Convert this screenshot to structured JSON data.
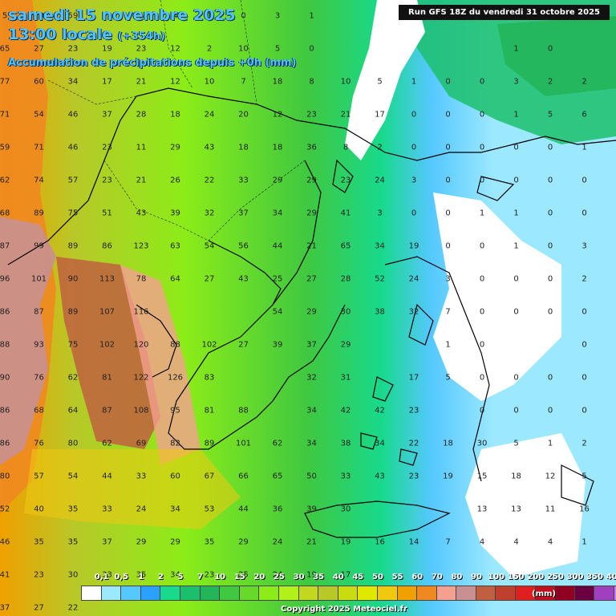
{
  "header": {
    "date_line": "samedi 15 novembre 2025",
    "time_line": "13:00 locale",
    "offset": "(+354h)",
    "variable": "Accumulation de précipitations depuis +0h (mm)"
  },
  "run_info": "Run GFS 18Z du vendredi 31 octobre 2025",
  "legend": {
    "labels": [
      "0,1",
      "0,5",
      "1",
      "2",
      "5",
      "7",
      "10",
      "15",
      "20",
      "25",
      "30",
      "35",
      "40",
      "45",
      "50",
      "55",
      "60",
      "70",
      "80",
      "90",
      "100",
      "150",
      "200",
      "250",
      "300",
      "350",
      "400",
      "500"
    ],
    "unit": "(mm)",
    "colors": [
      "#ffffff",
      "#9be8ff",
      "#55c8ff",
      "#2aa0ff",
      "#18d98c",
      "#1cc06c",
      "#24b55a",
      "#3fc840",
      "#66d92a",
      "#8cec18",
      "#b2f01a",
      "#c2d820",
      "#b8c828",
      "#c8dc10",
      "#e0e800",
      "#f0c810",
      "#f0a000",
      "#f08820",
      "#f4a090",
      "#c89090",
      "#c06040",
      "#c04030",
      "#e02020",
      "#c01020",
      "#900020",
      "#6a0040",
      "#a040c0",
      "#c080f0"
    ]
  },
  "copyright": "Copyright 2025 Meteociel.fr",
  "grid_values": [
    [
      "5",
      "29",
      "59",
      "52",
      "6",
      "4",
      "1",
      "0",
      "3",
      "1",
      "",
      "",
      "",
      "",
      "",
      "",
      "",
      ""
    ],
    [
      "65",
      "27",
      "23",
      "19",
      "23",
      "12",
      "2",
      "10",
      "5",
      "0",
      "",
      "",
      "",
      "",
      "",
      "1",
      "0",
      ""
    ],
    [
      "77",
      "60",
      "34",
      "17",
      "21",
      "12",
      "10",
      "7",
      "18",
      "8",
      "10",
      "5",
      "1",
      "0",
      "0",
      "3",
      "2",
      "2"
    ],
    [
      "71",
      "54",
      "46",
      "37",
      "28",
      "18",
      "24",
      "20",
      "12",
      "23",
      "21",
      "17",
      "0",
      "0",
      "0",
      "1",
      "5",
      "6"
    ],
    [
      "59",
      "71",
      "46",
      "23",
      "11",
      "29",
      "43",
      "18",
      "18",
      "36",
      "8",
      "2",
      "0",
      "0",
      "0",
      "0",
      "0",
      "1"
    ],
    [
      "62",
      "74",
      "57",
      "23",
      "21",
      "26",
      "22",
      "33",
      "29",
      "29",
      "23",
      "24",
      "3",
      "0",
      "0",
      "0",
      "0",
      "0"
    ],
    [
      "68",
      "89",
      "75",
      "51",
      "43",
      "39",
      "32",
      "37",
      "34",
      "29",
      "41",
      "3",
      "0",
      "0",
      "1",
      "1",
      "0",
      "0"
    ],
    [
      "87",
      "99",
      "89",
      "86",
      "123",
      "63",
      "54",
      "56",
      "44",
      "21",
      "65",
      "34",
      "19",
      "0",
      "0",
      "1",
      "0",
      "3"
    ],
    [
      "96",
      "101",
      "90",
      "113",
      "78",
      "64",
      "27",
      "43",
      "25",
      "27",
      "28",
      "52",
      "24",
      "3",
      "0",
      "0",
      "0",
      "2"
    ],
    [
      "86",
      "87",
      "89",
      "107",
      "116",
      "",
      "",
      "",
      "54",
      "29",
      "30",
      "38",
      "32",
      "7",
      "0",
      "0",
      "0",
      "0"
    ],
    [
      "88",
      "93",
      "75",
      "102",
      "120",
      "88",
      "102",
      "27",
      "39",
      "37",
      "29",
      "",
      "",
      "1",
      "0",
      "",
      "",
      "0"
    ],
    [
      "90",
      "76",
      "62",
      "81",
      "122",
      "126",
      "83",
      "",
      "",
      "32",
      "31",
      "",
      "17",
      "5",
      "0",
      "0",
      "0",
      "0"
    ],
    [
      "86",
      "68",
      "64",
      "87",
      "108",
      "95",
      "81",
      "88",
      "",
      "34",
      "42",
      "42",
      "23",
      "",
      "0",
      "0",
      "0",
      "0"
    ],
    [
      "86",
      "76",
      "80",
      "62",
      "69",
      "82",
      "89",
      "101",
      "62",
      "34",
      "38",
      "34",
      "22",
      "18",
      "30",
      "5",
      "1",
      "2"
    ],
    [
      "80",
      "57",
      "54",
      "44",
      "33",
      "60",
      "67",
      "66",
      "65",
      "50",
      "33",
      "43",
      "23",
      "19",
      "15",
      "18",
      "12",
      "5"
    ],
    [
      "52",
      "40",
      "35",
      "33",
      "24",
      "34",
      "53",
      "44",
      "36",
      "39",
      "30",
      "",
      "",
      "",
      "13",
      "13",
      "11",
      "16"
    ],
    [
      "46",
      "35",
      "35",
      "37",
      "29",
      "29",
      "35",
      "29",
      "24",
      "21",
      "19",
      "16",
      "14",
      "7",
      "4",
      "4",
      "4",
      "1"
    ],
    [
      "41",
      "23",
      "30",
      "33",
      "35",
      "34",
      "23",
      "25",
      "24",
      "19",
      "17",
      "",
      "",
      "",
      "",
      "",
      "",
      ""
    ],
    [
      "37",
      "27",
      "22",
      "",
      "",
      "",
      "",
      "",
      "",
      "",
      "",
      "",
      "",
      "",
      "",
      "",
      "",
      ""
    ]
  ]
}
